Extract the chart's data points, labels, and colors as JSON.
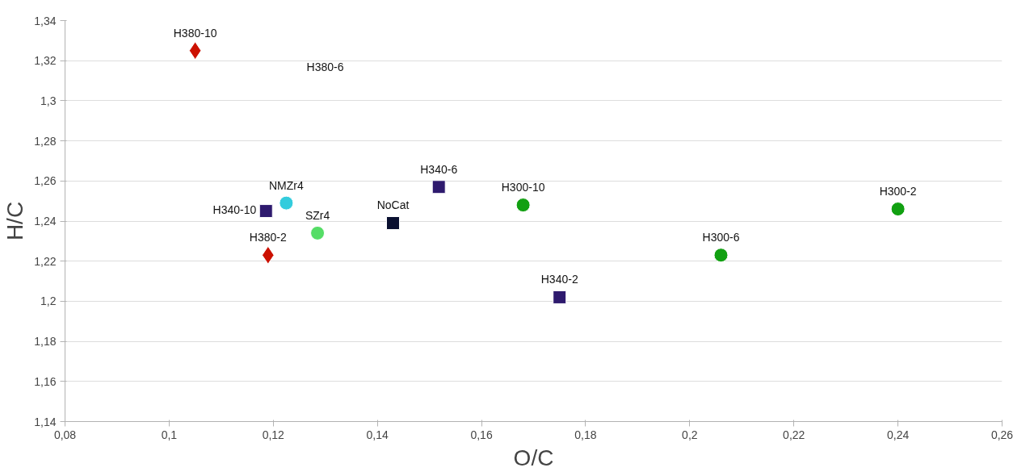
{
  "chart_data": {
    "type": "scatter",
    "xlabel": "O/C",
    "ylabel": "H/C",
    "grid": "y",
    "xlim": [
      0.08,
      0.26
    ],
    "ylim": [
      1.14,
      1.34
    ],
    "xticks": [
      {
        "value": 0.08,
        "label": "0,08"
      },
      {
        "value": 0.1,
        "label": "0,1"
      },
      {
        "value": 0.12,
        "label": "0,12"
      },
      {
        "value": 0.14,
        "label": "0,14"
      },
      {
        "value": 0.16,
        "label": "0,16"
      },
      {
        "value": 0.18,
        "label": "0,18"
      },
      {
        "value": 0.2,
        "label": "0,2"
      },
      {
        "value": 0.22,
        "label": "0,22"
      },
      {
        "value": 0.24,
        "label": "0,24"
      },
      {
        "value": 0.26,
        "label": "0,26"
      }
    ],
    "yticks": [
      {
        "value": 1.14,
        "label": "1,14"
      },
      {
        "value": 1.16,
        "label": "1,16"
      },
      {
        "value": 1.18,
        "label": "1,18"
      },
      {
        "value": 1.2,
        "label": "1,2"
      },
      {
        "value": 1.22,
        "label": "1,22"
      },
      {
        "value": 1.24,
        "label": "1,24"
      },
      {
        "value": 1.26,
        "label": "1,26"
      },
      {
        "value": 1.28,
        "label": "1,28"
      },
      {
        "value": 1.3,
        "label": "1,3"
      },
      {
        "value": 1.32,
        "label": "1,32"
      },
      {
        "value": 1.34,
        "label": "1,34"
      }
    ],
    "series": [
      {
        "name": "H380-10",
        "color": "#cc1100",
        "marker": "diamond",
        "x": [
          0.105
        ],
        "values": [
          1.325
        ]
      },
      {
        "name": "H380-2",
        "color": "#cc1100",
        "marker": "diamond",
        "x": [
          0.119
        ],
        "values": [
          1.223
        ]
      },
      {
        "name": "NMZr4",
        "color": "#33ccdd",
        "marker": "circle",
        "x": [
          0.1225
        ],
        "values": [
          1.249
        ]
      },
      {
        "name": "H340-10",
        "color": "#2e1a6e",
        "marker": "square",
        "x": [
          0.1186
        ],
        "values": [
          1.245
        ]
      },
      {
        "name": "SZr4",
        "color": "#55dd66",
        "marker": "circle",
        "x": [
          0.1285
        ],
        "values": [
          1.234
        ]
      },
      {
        "name": "NoCat",
        "color": "#0a1030",
        "marker": "square",
        "x": [
          0.143
        ],
        "values": [
          1.239
        ]
      },
      {
        "name": "H340-6",
        "color": "#2e1a6e",
        "marker": "square",
        "x": [
          0.1518
        ],
        "values": [
          1.257
        ]
      },
      {
        "name": "H300-10",
        "color": "#11a011",
        "marker": "circle",
        "x": [
          0.168
        ],
        "values": [
          1.248
        ]
      },
      {
        "name": "H340-2",
        "color": "#2e1a6e",
        "marker": "square",
        "x": [
          0.175
        ],
        "values": [
          1.202
        ]
      },
      {
        "name": "H300-6",
        "color": "#11a011",
        "marker": "circle",
        "x": [
          0.206
        ],
        "values": [
          1.223
        ]
      },
      {
        "name": "H300-2",
        "color": "#11a011",
        "marker": "circle",
        "x": [
          0.24
        ],
        "values": [
          1.246
        ]
      }
    ],
    "annotations": [
      "H380-6"
    ]
  }
}
